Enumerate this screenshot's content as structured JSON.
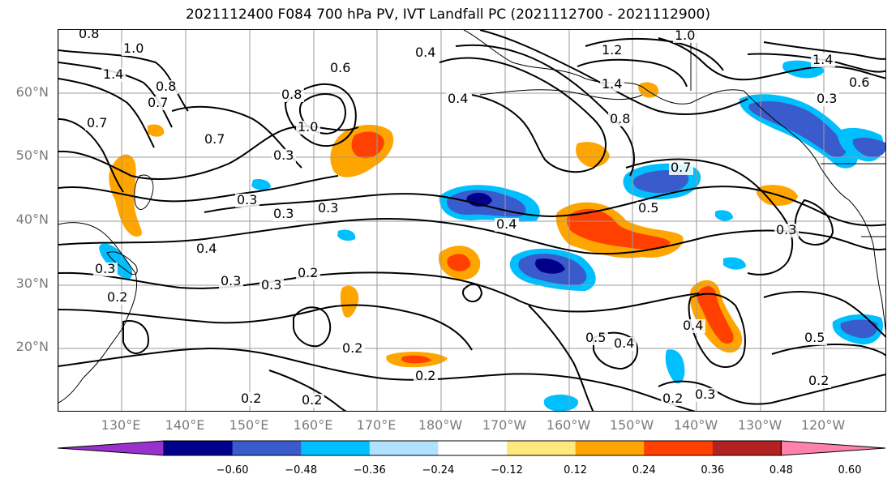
{
  "title": "2021112400 F084 700 hPa PV, IVT Landfall PC (2021112700 - 2021112900)",
  "lat_labels": [
    "60°N",
    "50°N",
    "40°N",
    "30°N",
    "20°N"
  ],
  "lon_labels": [
    "130°E",
    "140°E",
    "150°E",
    "160°E",
    "170°E",
    "180°W",
    "170°W",
    "160°W",
    "150°W",
    "140°W",
    "130°W",
    "120°W"
  ],
  "colorbar": {
    "ticks": [
      "−0.60",
      "−0.48",
      "−0.36",
      "−0.24",
      "−0.12",
      "0.12",
      "0.24",
      "0.36",
      "0.48",
      "0.60"
    ],
    "colors": [
      "#9932cc",
      "#00008b",
      "#3a5bcc",
      "#00bfff",
      "#b0e2ff",
      "#ffffff",
      "#ffe97f",
      "#ffa500",
      "#ff4000",
      "#b22222",
      "#ff82ab"
    ]
  },
  "contour_labels": [
    "0.8",
    "1.0",
    "1.4",
    "0.8",
    "0.7",
    "0.7",
    "0.7",
    "1.0",
    "0.8",
    "0.6",
    "0.3",
    "0.4",
    "0.4",
    "1.2",
    "1.4",
    "1.0",
    "0.8",
    "1.4",
    "0.6",
    "0.3",
    "0.7",
    "0.5",
    "0.3",
    "0.3",
    "0.3",
    "0.4",
    "0.4",
    "0.3",
    "0.2",
    "0.3",
    "0.2",
    "0.2",
    "0.3",
    "0.2",
    "0.5",
    "0.4",
    "0.4",
    "0.5",
    "0.2",
    "0.2",
    "0.3",
    "0.3",
    "0.2",
    "0.2"
  ]
}
